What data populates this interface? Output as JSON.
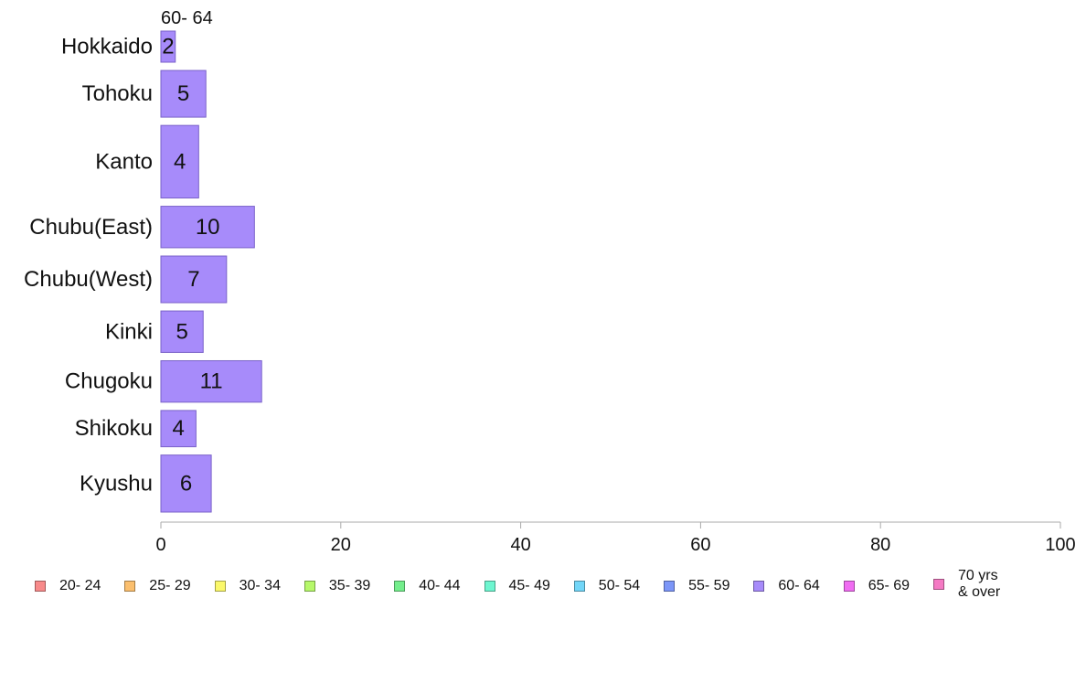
{
  "chart_data": {
    "type": "bar",
    "orientation": "horizontal",
    "title": "60- 64",
    "categories": [
      "Hokkaido",
      "Tohoku",
      "Kanto",
      "Chubu(East)",
      "Chubu(West)",
      "Kinki",
      "Chugoku",
      "Shikoku",
      "Kyushu"
    ],
    "series": [
      {
        "name": "60- 64",
        "values": [
          2,
          5,
          4,
          10,
          7,
          5,
          11,
          4,
          6
        ],
        "color": "#a78bfa"
      }
    ],
    "data_labels": [
      "2",
      "5",
      "4",
      "10",
      "7",
      "5",
      "11",
      "4",
      "6"
    ],
    "bar_values": [
      1.6,
      5,
      4.2,
      10.4,
      7.3,
      4.7,
      11.2,
      3.9,
      5.6
    ],
    "relative_band_heights": [
      0.6,
      0.9,
      1.4,
      0.8,
      0.9,
      0.8,
      0.8,
      0.7,
      1.1
    ],
    "xlim": [
      0,
      100
    ],
    "xticks": [
      0,
      20,
      40,
      60,
      80,
      100
    ],
    "xlabel": "",
    "ylabel": "",
    "grid": false,
    "legend_position": "bottom",
    "legend": [
      {
        "label": "20- 24",
        "color": "#f88a8a"
      },
      {
        "label": "25- 29",
        "color": "#fbbf6e"
      },
      {
        "label": "30- 34",
        "color": "#fbf86a"
      },
      {
        "label": "35- 39",
        "color": "#b6f86a"
      },
      {
        "label": "40- 44",
        "color": "#74ee8c"
      },
      {
        "label": "45- 49",
        "color": "#6ef6d0"
      },
      {
        "label": "50- 54",
        "color": "#72d6f8"
      },
      {
        "label": "55- 59",
        "color": "#7c96f8"
      },
      {
        "label": "60- 64",
        "color": "#a78bfa"
      },
      {
        "label": "65- 69",
        "color": "#f06cf2"
      },
      {
        "label": "70 yrs\n& over",
        "color": "#f57ac4"
      }
    ]
  }
}
